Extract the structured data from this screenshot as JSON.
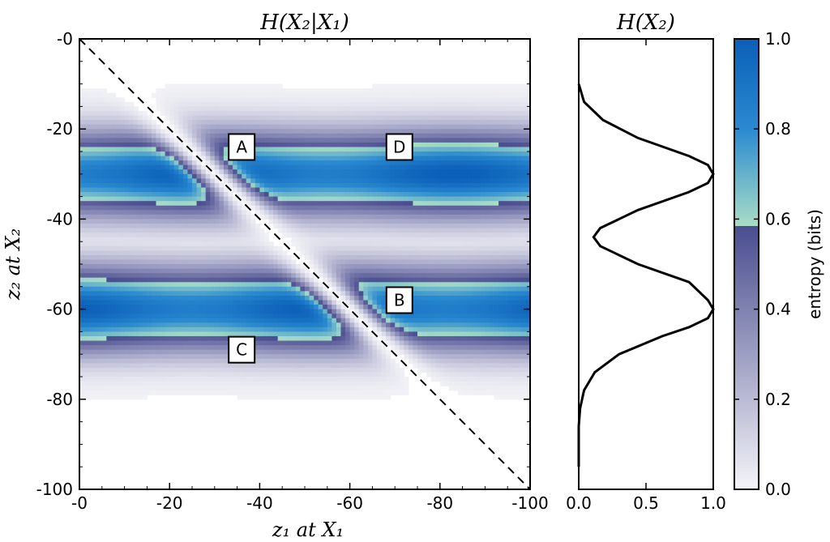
{
  "chart_data": [
    {
      "type": "heatmap",
      "title": "H(X₂|X₁)",
      "xlabel": "z₁ at X₁",
      "ylabel": "z₂ at X₂",
      "xlim": [
        0,
        -100
      ],
      "ylim": [
        -100,
        0
      ],
      "xticks": [
        "-0",
        "-20",
        "-40",
        "-60",
        "-80",
        "-100"
      ],
      "yticks": [
        "-0",
        "-20",
        "-40",
        "-60",
        "-80",
        "-100"
      ],
      "bands": [
        {
          "center_z2": -30,
          "sigma": 6.5,
          "gap_crosses_diagonal": true
        },
        {
          "center_z2": -60,
          "sigma": 6.5,
          "gap_crosses_diagonal": true
        }
      ],
      "diagonal": {
        "from": [
          0,
          0
        ],
        "to": [
          -100,
          -100
        ],
        "style": "dashed"
      },
      "annotations": [
        {
          "label": "A",
          "z1": -36,
          "z2": -24
        },
        {
          "label": "D",
          "z1": -71,
          "z2": -24
        },
        {
          "label": "B",
          "z1": -71,
          "z2": -58
        },
        {
          "label": "C",
          "z1": -36,
          "z2": -69
        }
      ]
    },
    {
      "type": "line",
      "title": "H(X₂)",
      "xlim": [
        0,
        1
      ],
      "ylim": [
        -100,
        0
      ],
      "xticks": [
        "0.0",
        "0.5",
        "1.0"
      ],
      "series": [
        {
          "name": "H(X2)",
          "z2": [
            -10,
            -14,
            -18,
            -22,
            -26,
            -28,
            -30,
            -32,
            -34,
            -38,
            -42,
            -44,
            -46,
            -50,
            -54,
            -58,
            -60,
            -62,
            -64,
            -66,
            -70,
            -74,
            -78,
            -82,
            -86,
            -90,
            -95
          ],
          "values": [
            0.0,
            0.04,
            0.18,
            0.44,
            0.82,
            0.96,
            1.0,
            0.96,
            0.82,
            0.44,
            0.16,
            0.11,
            0.16,
            0.44,
            0.82,
            0.96,
            1.0,
            0.96,
            0.82,
            0.62,
            0.3,
            0.12,
            0.04,
            0.01,
            0.0,
            0.0,
            0.0
          ]
        }
      ]
    },
    {
      "type": "colorbar",
      "label": "entropy (bits)",
      "ticks": [
        "0.0",
        "0.2",
        "0.4",
        "0.6",
        "0.8",
        "1.0"
      ],
      "range": [
        0,
        1
      ],
      "colors": {
        "low": "#f4f4f8",
        "mid_low": "#4a4d8f",
        "threshold_value": 0.585,
        "threshold_color": "#a8ddc6",
        "mid_high": "#2a8ad0",
        "high": "#0a5fb8"
      }
    }
  ]
}
